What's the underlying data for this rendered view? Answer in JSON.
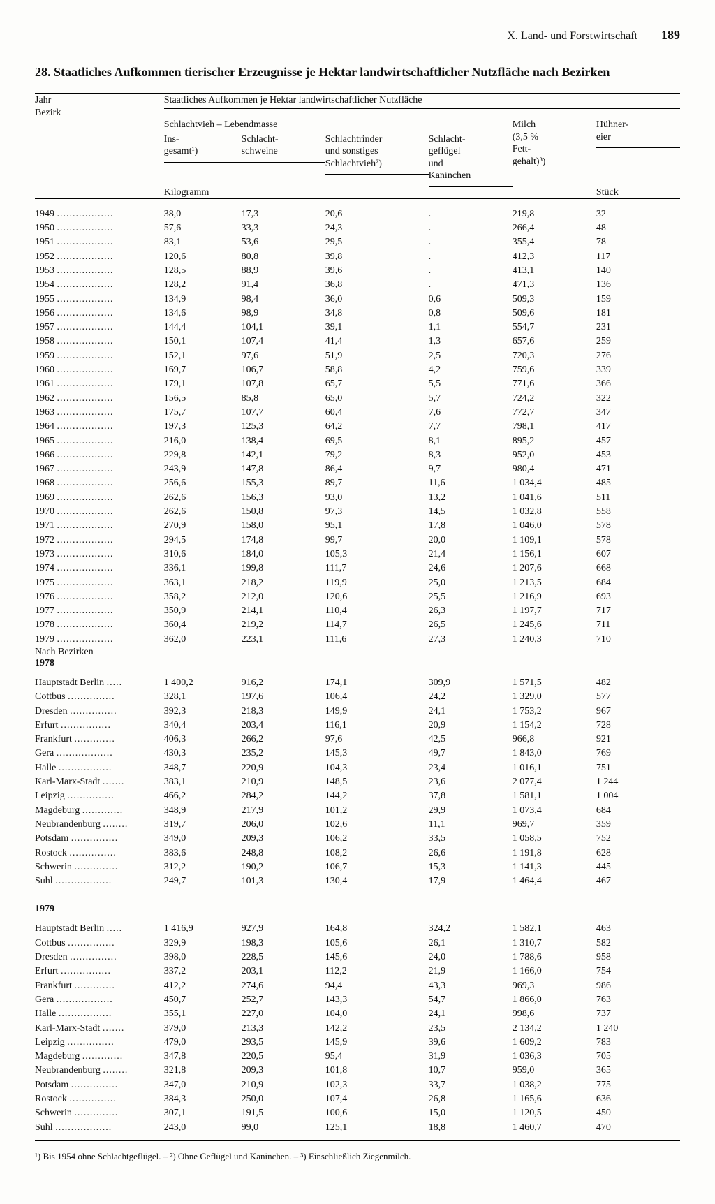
{
  "page": {
    "section": "X. Land- und Forstwirtschaft",
    "number": "189",
    "title": "28. Staatliches Aufkommen tierischer Erzeugnisse je Hektar landwirtschaftlicher Nutzfläche nach Bezirken"
  },
  "head": {
    "left_top": "Jahr",
    "left_bottom": "Bezirk",
    "super": "Staatliches Aufkommen je Hektar landwirtschaftlicher Nutzfläche",
    "group_schlacht": "Schlachtvieh – Lebendmasse",
    "c1": "Ins-\ngesamt¹)",
    "c2": "Schlacht-\nschweine",
    "c3": "Schlachtrinder\nund sonstiges\nSchlachtvieh²)",
    "c4": "Schlacht-\ngeflügel\nund\nKaninchen",
    "c5": "Milch\n(3,5 %\nFett-\ngehalt)³)",
    "c6": "Hühner-\neier",
    "unit_left": "Kilogramm",
    "unit_right": "Stück"
  },
  "labels": {
    "nach_bezirken": "Nach Bezirken",
    "y1978": "1978",
    "y1979": "1979"
  },
  "footnote": "¹) Bis 1954 ohne Schlachtgeflügel. – ²) Ohne Geflügel und Kaninchen. – ³) Einschließlich Ziegenmilch.",
  "years": [
    [
      "1949",
      "38,0",
      "17,3",
      "20,6",
      ".",
      "219,8",
      "32"
    ],
    [
      "1950",
      "57,6",
      "33,3",
      "24,3",
      ".",
      "266,4",
      "48"
    ],
    [
      "1951",
      "83,1",
      "53,6",
      "29,5",
      ".",
      "355,4",
      "78"
    ],
    [
      "1952",
      "120,6",
      "80,8",
      "39,8",
      ".",
      "412,3",
      "117"
    ],
    [
      "1953",
      "128,5",
      "88,9",
      "39,6",
      ".",
      "413,1",
      "140"
    ],
    [
      "1954",
      "128,2",
      "91,4",
      "36,8",
      ".",
      "471,3",
      "136"
    ],
    [
      "1955",
      "134,9",
      "98,4",
      "36,0",
      "0,6",
      "509,3",
      "159"
    ],
    [
      "1956",
      "134,6",
      "98,9",
      "34,8",
      "0,8",
      "509,6",
      "181"
    ],
    [
      "1957",
      "144,4",
      "104,1",
      "39,1",
      "1,1",
      "554,7",
      "231"
    ],
    [
      "1958",
      "150,1",
      "107,4",
      "41,4",
      "1,3",
      "657,6",
      "259"
    ],
    [
      "1959",
      "152,1",
      "97,6",
      "51,9",
      "2,5",
      "720,3",
      "276"
    ],
    [
      "1960",
      "169,7",
      "106,7",
      "58,8",
      "4,2",
      "759,6",
      "339"
    ],
    [
      "1961",
      "179,1",
      "107,8",
      "65,7",
      "5,5",
      "771,6",
      "366"
    ],
    [
      "1962",
      "156,5",
      "85,8",
      "65,0",
      "5,7",
      "724,2",
      "322"
    ],
    [
      "1963",
      "175,7",
      "107,7",
      "60,4",
      "7,6",
      "772,7",
      "347"
    ],
    [
      "1964",
      "197,3",
      "125,3",
      "64,2",
      "7,7",
      "798,1",
      "417"
    ],
    [
      "1965",
      "216,0",
      "138,4",
      "69,5",
      "8,1",
      "895,2",
      "457"
    ],
    [
      "1966",
      "229,8",
      "142,1",
      "79,2",
      "8,3",
      "952,0",
      "453"
    ],
    [
      "1967",
      "243,9",
      "147,8",
      "86,4",
      "9,7",
      "980,4",
      "471"
    ],
    [
      "1968",
      "256,6",
      "155,3",
      "89,7",
      "11,6",
      "1 034,4",
      "485"
    ],
    [
      "1969",
      "262,6",
      "156,3",
      "93,0",
      "13,2",
      "1 041,6",
      "511"
    ],
    [
      "1970",
      "262,6",
      "150,8",
      "97,3",
      "14,5",
      "1 032,8",
      "558"
    ],
    [
      "1971",
      "270,9",
      "158,0",
      "95,1",
      "17,8",
      "1 046,0",
      "578"
    ],
    [
      "1972",
      "294,5",
      "174,8",
      "99,7",
      "20,0",
      "1 109,1",
      "578"
    ],
    [
      "1973",
      "310,6",
      "184,0",
      "105,3",
      "21,4",
      "1 156,1",
      "607"
    ],
    [
      "1974",
      "336,1",
      "199,8",
      "111,7",
      "24,6",
      "1 207,6",
      "668"
    ],
    [
      "1975",
      "363,1",
      "218,2",
      "119,9",
      "25,0",
      "1 213,5",
      "684"
    ],
    [
      "1976",
      "358,2",
      "212,0",
      "120,6",
      "25,5",
      "1 216,9",
      "693"
    ],
    [
      "1977",
      "350,9",
      "214,1",
      "110,4",
      "26,3",
      "1 197,7",
      "717"
    ],
    [
      "1978",
      "360,4",
      "219,2",
      "114,7",
      "26,5",
      "1 245,6",
      "711"
    ],
    [
      "1979",
      "362,0",
      "223,1",
      "111,6",
      "27,3",
      "1 240,3",
      "710"
    ]
  ],
  "bez1978": [
    [
      "Hauptstadt Berlin",
      "1 400,2",
      "916,2",
      "174,1",
      "309,9",
      "1 571,5",
      "482"
    ],
    [
      "Cottbus",
      "328,1",
      "197,6",
      "106,4",
      "24,2",
      "1 329,0",
      "577"
    ],
    [
      "Dresden",
      "392,3",
      "218,3",
      "149,9",
      "24,1",
      "1 753,2",
      "967"
    ],
    [
      "Erfurt",
      "340,4",
      "203,4",
      "116,1",
      "20,9",
      "1 154,2",
      "728"
    ],
    [
      "Frankfurt",
      "406,3",
      "266,2",
      "97,6",
      "42,5",
      "966,8",
      "921"
    ],
    [
      "Gera",
      "430,3",
      "235,2",
      "145,3",
      "49,7",
      "1 843,0",
      "769"
    ],
    [
      "Halle",
      "348,7",
      "220,9",
      "104,3",
      "23,4",
      "1 016,1",
      "751"
    ],
    [
      "Karl-Marx-Stadt",
      "383,1",
      "210,9",
      "148,5",
      "23,6",
      "2 077,4",
      "1 244"
    ],
    [
      "Leipzig",
      "466,2",
      "284,2",
      "144,2",
      "37,8",
      "1 581,1",
      "1 004"
    ],
    [
      "Magdeburg",
      "348,9",
      "217,9",
      "101,2",
      "29,9",
      "1 073,4",
      "684"
    ],
    [
      "Neubrandenburg",
      "319,7",
      "206,0",
      "102,6",
      "11,1",
      "969,7",
      "359"
    ],
    [
      "Potsdam",
      "349,0",
      "209,3",
      "106,2",
      "33,5",
      "1 058,5",
      "752"
    ],
    [
      "Rostock",
      "383,6",
      "248,8",
      "108,2",
      "26,6",
      "1 191,8",
      "628"
    ],
    [
      "Schwerin",
      "312,2",
      "190,2",
      "106,7",
      "15,3",
      "1 141,3",
      "445"
    ],
    [
      "Suhl",
      "249,7",
      "101,3",
      "130,4",
      "17,9",
      "1 464,4",
      "467"
    ]
  ],
  "bez1979": [
    [
      "Hauptstadt Berlin",
      "1 416,9",
      "927,9",
      "164,8",
      "324,2",
      "1 582,1",
      "463"
    ],
    [
      "Cottbus",
      "329,9",
      "198,3",
      "105,6",
      "26,1",
      "1 310,7",
      "582"
    ],
    [
      "Dresden",
      "398,0",
      "228,5",
      "145,6",
      "24,0",
      "1 788,6",
      "958"
    ],
    [
      "Erfurt",
      "337,2",
      "203,1",
      "112,2",
      "21,9",
      "1 166,0",
      "754"
    ],
    [
      "Frankfurt",
      "412,2",
      "274,6",
      "94,4",
      "43,3",
      "969,3",
      "986"
    ],
    [
      "Gera",
      "450,7",
      "252,7",
      "143,3",
      "54,7",
      "1 866,0",
      "763"
    ],
    [
      "Halle",
      "355,1",
      "227,0",
      "104,0",
      "24,1",
      "998,6",
      "737"
    ],
    [
      "Karl-Marx-Stadt",
      "379,0",
      "213,3",
      "142,2",
      "23,5",
      "2 134,2",
      "1 240"
    ],
    [
      "Leipzig",
      "479,0",
      "293,5",
      "145,9",
      "39,6",
      "1 609,2",
      "783"
    ],
    [
      "Magdeburg",
      "347,8",
      "220,5",
      "95,4",
      "31,9",
      "1 036,3",
      "705"
    ],
    [
      "Neubrandenburg",
      "321,8",
      "209,3",
      "101,8",
      "10,7",
      "959,0",
      "365"
    ],
    [
      "Potsdam",
      "347,0",
      "210,9",
      "102,3",
      "33,7",
      "1 038,2",
      "775"
    ],
    [
      "Rostock",
      "384,3",
      "250,0",
      "107,4",
      "26,8",
      "1 165,6",
      "636"
    ],
    [
      "Schwerin",
      "307,1",
      "191,5",
      "100,6",
      "15,0",
      "1 120,5",
      "450"
    ],
    [
      "Suhl",
      "243,0",
      "99,0",
      "125,1",
      "18,8",
      "1 460,7",
      "470"
    ]
  ],
  "layout": {
    "col_widths_pct": [
      20,
      12,
      13,
      16,
      13,
      13,
      13
    ],
    "dot_char": "."
  }
}
